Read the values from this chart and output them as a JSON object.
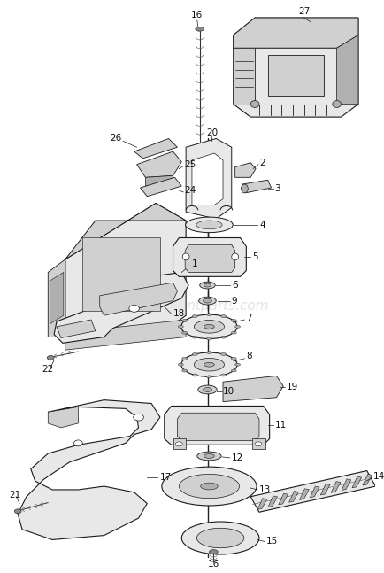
{
  "background_color": "#ffffff",
  "watermark_text": "ereplacementparts.com",
  "fig_width": 4.35,
  "fig_height": 6.47,
  "dpi": 100,
  "line_color": "#1a1a1a",
  "fill_light": "#e8e8e8",
  "fill_mid": "#d0d0d0",
  "fill_dark": "#b0b0b0",
  "label_fontsize": 7.5
}
